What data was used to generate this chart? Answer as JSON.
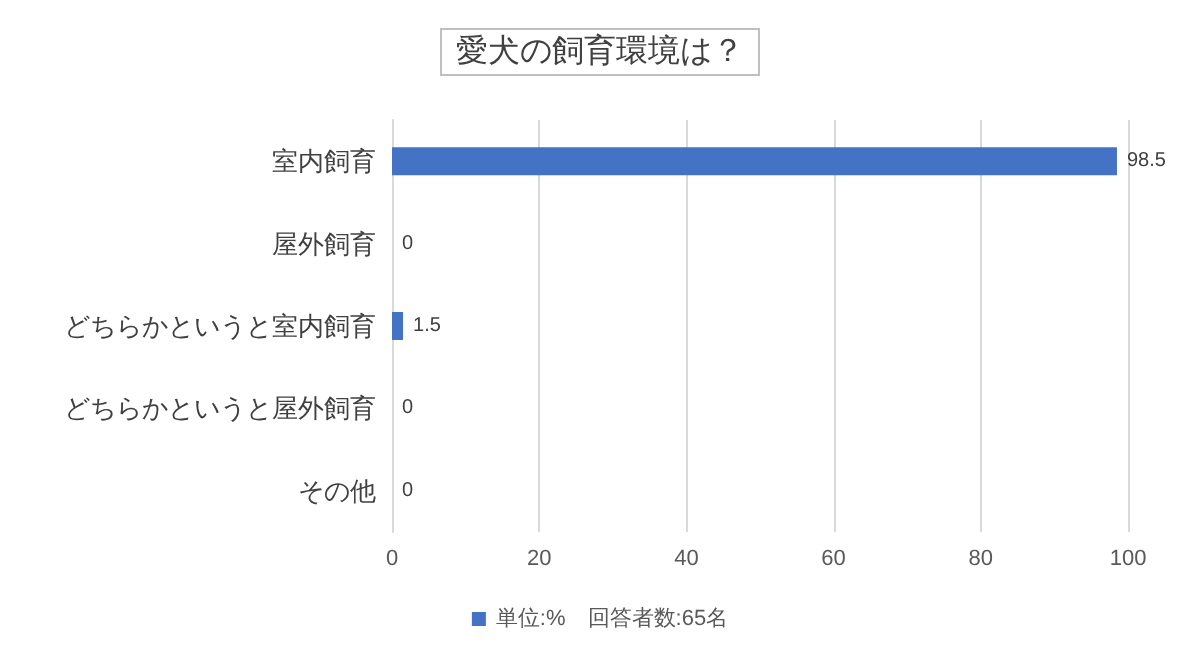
{
  "chart_data": {
    "type": "bar",
    "orientation": "horizontal",
    "title": "愛犬の飼育環境は？",
    "categories": [
      "室内飼育",
      "屋外飼育",
      "どちらかというと室内飼育",
      "どちらかというと屋外飼育",
      "その他"
    ],
    "series": [
      {
        "name": "単位:%　回答者数:65名",
        "color": "#4472c4",
        "values": [
          98.5,
          0,
          1.5,
          0,
          0
        ]
      }
    ],
    "xlim": [
      0,
      100
    ],
    "xticks": [
      0,
      20,
      40,
      60,
      80,
      100
    ],
    "grid": "x",
    "legend": "bottom",
    "data_labels": true
  }
}
